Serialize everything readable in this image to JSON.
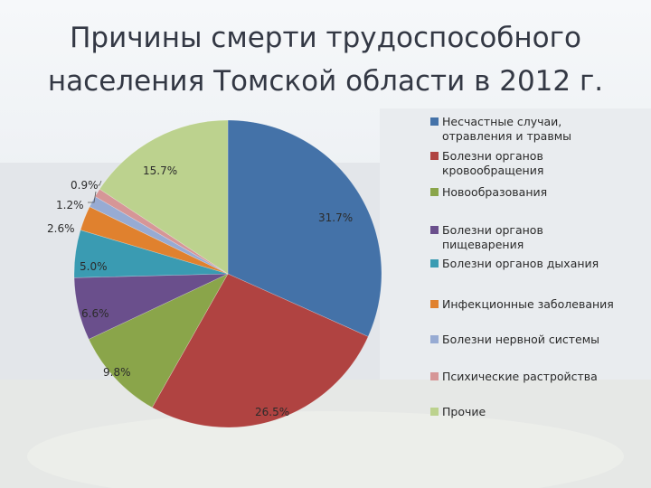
{
  "title": "Причины смерти трудоспособного населения Томской области в 2012 г.",
  "colors": {
    "accident": "#4472a8",
    "circulatory": "#b04341",
    "neoplasm": "#8aa54a",
    "digestive": "#6a4f8c",
    "respiratory": "#3a9bb2",
    "infectious": "#e0812e",
    "nervous": "#97abd3",
    "mental": "#d69697",
    "other": "#bcd28e"
  },
  "chart_data": {
    "type": "pie",
    "title": "Причины смерти трудоспособного населения Томской области в 2012 г.",
    "slices": [
      {
        "label_lines": [
          "Несчастные случаи,",
          "отравления и травмы"
        ],
        "value": 31.7,
        "text": "31.7%",
        "color": "#4472a8"
      },
      {
        "label_lines": [
          "Болезни органов",
          "кровообращения"
        ],
        "value": 26.5,
        "text": "26.5%",
        "color": "#b04341"
      },
      {
        "label_lines": [
          "Новообразования"
        ],
        "value": 9.8,
        "text": "9.8%",
        "color": "#8aa54a"
      },
      {
        "label_lines": [
          "Болезни органов",
          "пищеварения"
        ],
        "value": 6.6,
        "text": "6.6%",
        "color": "#6a4f8c"
      },
      {
        "label_lines": [
          "Болезни органов дыхания"
        ],
        "value": 5.0,
        "text": "5.0%",
        "color": "#3a9bb2"
      },
      {
        "label_lines": [
          "Инфекционные заболевания"
        ],
        "value": 2.6,
        "text": "2.6%",
        "color": "#e0812e"
      },
      {
        "label_lines": [
          "Болезни нервной системы"
        ],
        "value": 1.2,
        "text": "1.2%",
        "color": "#97abd3"
      },
      {
        "label_lines": [
          "Психические растройства"
        ],
        "value": 0.9,
        "text": "0.9%",
        "color": "#d69697"
      },
      {
        "label_lines": [
          "Прочие"
        ],
        "value": 15.7,
        "text": "15.7%",
        "color": "#bcd28e"
      }
    ],
    "legend_position": "right"
  }
}
